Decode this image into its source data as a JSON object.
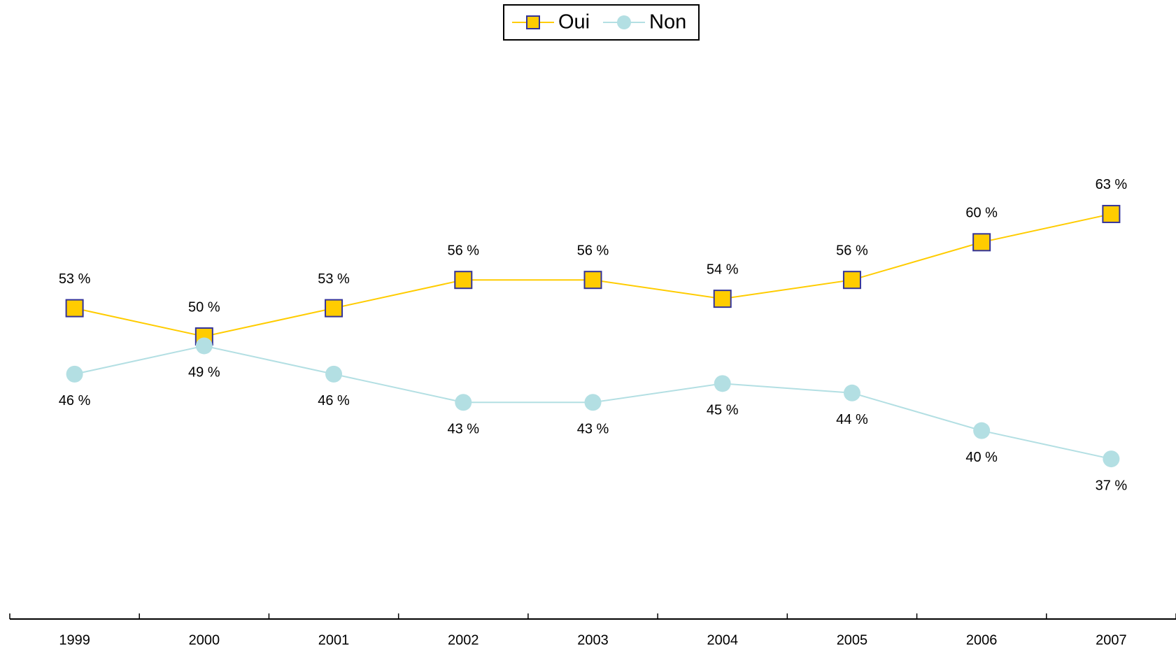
{
  "chart_data": {
    "type": "line",
    "categories": [
      "1999",
      "2000",
      "2001",
      "2002",
      "2003",
      "2004",
      "2005",
      "2006",
      "2007"
    ],
    "series": [
      {
        "name": "Oui",
        "color": "#FFCC00",
        "marker": "square",
        "values": [
          53,
          50,
          53,
          56,
          56,
          54,
          56,
          60,
          63
        ],
        "value_labels": [
          "53 %",
          "50 %",
          "53 %",
          "56 %",
          "56 %",
          "54 %",
          "56 %",
          "60 %",
          "63 %"
        ]
      },
      {
        "name": "Non",
        "color": "#B3DFE3",
        "marker": "circle",
        "values": [
          46,
          49,
          46,
          43,
          43,
          45,
          44,
          40,
          37
        ],
        "value_labels": [
          "46 %",
          "49 %",
          "46 %",
          "43 %",
          "43 %",
          "45 %",
          "44 %",
          "40 %",
          "37 %"
        ]
      }
    ],
    "ylim": [
      20,
      80
    ],
    "legend": "top"
  }
}
